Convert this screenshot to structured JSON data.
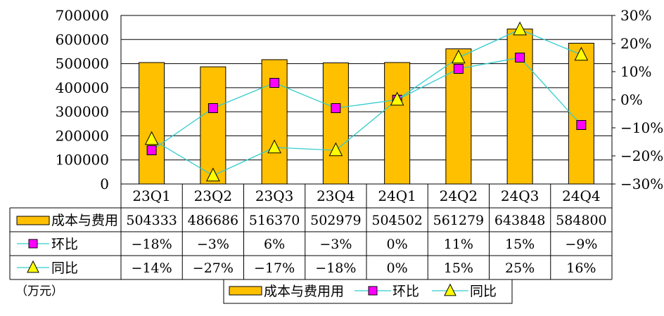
{
  "chart_data": {
    "type": "bar",
    "categories": [
      "23Q1",
      "23Q2",
      "23Q3",
      "23Q4",
      "24Q1",
      "24Q2",
      "24Q3",
      "24Q4"
    ],
    "series": [
      {
        "name": "成本与费用",
        "kind": "bar",
        "axis": "left",
        "color": "#FFC000",
        "values": [
          504333,
          486686,
          516370,
          502979,
          504502,
          561279,
          643848,
          584800
        ],
        "table_labels": [
          "504333",
          "486686",
          "516370",
          "502979",
          "504502",
          "561279",
          "643848",
          "584800"
        ]
      },
      {
        "name": "环比",
        "kind": "line",
        "axis": "right",
        "marker": "square",
        "color": "#33CCCC",
        "marker_color": "#FF00FF",
        "values": [
          -18,
          -3,
          6,
          -3,
          0,
          11,
          15,
          -9
        ],
        "table_labels": [
          "-18%",
          "-3%",
          "6%",
          "-3%",
          "0%",
          "11%",
          "15%",
          "-9%"
        ]
      },
      {
        "name": "同比",
        "kind": "line",
        "axis": "right",
        "marker": "triangle",
        "color": "#33CCCC",
        "marker_color": "#FFFF00",
        "values": [
          -14,
          -27,
          -17,
          -18,
          0,
          15,
          25,
          16
        ],
        "table_labels": [
          "-14%",
          "-27%",
          "-17%",
          "-18%",
          "0%",
          "15%",
          "25%",
          "16%"
        ]
      }
    ],
    "y_left": {
      "min": 0,
      "max": 700000,
      "step": 100000,
      "ticks": [
        "0",
        "100000",
        "200000",
        "300000",
        "400000",
        "500000",
        "600000",
        "700000"
      ]
    },
    "y_right": {
      "min": -30,
      "max": 30,
      "step": 10,
      "ticks": [
        "-30%",
        "-20%",
        "-10%",
        "0%",
        "10%",
        "20%",
        "30%"
      ]
    },
    "grid": true,
    "data_table": true,
    "legend_position": "bottom",
    "legend_labels": [
      "成本与费用用",
      "环比",
      "同比"
    ],
    "unit_note": "（万元）"
  }
}
